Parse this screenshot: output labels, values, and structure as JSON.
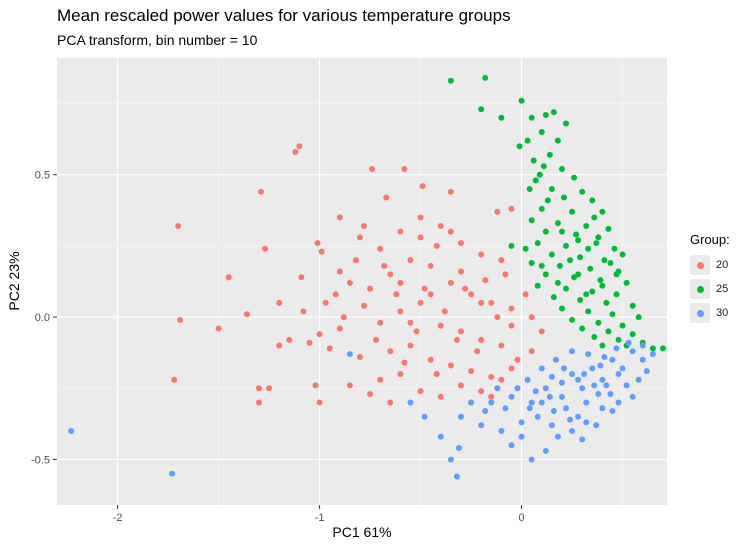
{
  "chart_data": {
    "type": "scatter",
    "title": "Mean rescaled power values for various temperature groups",
    "subtitle": "PCA transform, bin number = 10",
    "xlabel": "PC1 61%",
    "ylabel": "PC2 23%",
    "xlim": [
      -2.3,
      0.72
    ],
    "ylim": [
      -0.66,
      0.91
    ],
    "x_ticks": [
      -2,
      -1,
      0
    ],
    "x_tick_labels": [
      "-2",
      "-1",
      "0"
    ],
    "y_ticks": [
      -0.5,
      0.0,
      0.5
    ],
    "y_tick_labels": [
      "-0.5",
      "0.0",
      "0.5"
    ],
    "grid": true,
    "legend": {
      "title": "Group:",
      "position": "right"
    },
    "series": [
      {
        "name": "20",
        "color": "#F8766D",
        "points": [
          [
            -1.1,
            0.6
          ],
          [
            -1.12,
            0.58
          ],
          [
            -1.29,
            0.44
          ],
          [
            -1.7,
            0.32
          ],
          [
            -1.27,
            0.24
          ],
          [
            -1.45,
            0.14
          ],
          [
            -1.69,
            -0.01
          ],
          [
            -1.36,
            0.01
          ],
          [
            -1.2,
            0.05
          ],
          [
            -1.09,
            0.14
          ],
          [
            -1.01,
            0.26
          ],
          [
            -0.99,
            0.23
          ],
          [
            -0.9,
            0.16
          ],
          [
            -0.74,
            0.52
          ],
          [
            -0.58,
            0.52
          ],
          [
            -0.49,
            0.46
          ],
          [
            -0.35,
            0.44
          ],
          [
            -0.12,
            0.37
          ],
          [
            -0.05,
            0.38
          ],
          [
            -0.5,
            0.35
          ],
          [
            -0.4,
            0.32
          ],
          [
            -0.6,
            0.3
          ],
          [
            -0.8,
            0.28
          ],
          [
            -0.7,
            0.24
          ],
          [
            -0.3,
            0.26
          ],
          [
            -0.2,
            0.22
          ],
          [
            -0.1,
            0.2
          ],
          [
            -0.55,
            0.2
          ],
          [
            -0.45,
            0.18
          ],
          [
            -0.65,
            0.15
          ],
          [
            -0.85,
            0.12
          ],
          [
            -0.75,
            0.1
          ],
          [
            -0.35,
            0.12
          ],
          [
            -0.25,
            0.08
          ],
          [
            -0.15,
            0.05
          ],
          [
            -0.05,
            0.03
          ],
          [
            -0.5,
            0.05
          ],
          [
            -0.6,
            0.02
          ],
          [
            -0.7,
            -0.02
          ],
          [
            -0.9,
            -0.04
          ],
          [
            -1.0,
            -0.06
          ],
          [
            -0.4,
            -0.03
          ],
          [
            -0.3,
            -0.05
          ],
          [
            -0.2,
            -0.08
          ],
          [
            -0.1,
            -0.1
          ],
          [
            -0.55,
            -0.1
          ],
          [
            -0.65,
            -0.12
          ],
          [
            -0.8,
            -0.14
          ],
          [
            -0.95,
            -0.11
          ],
          [
            -1.05,
            -0.09
          ],
          [
            -1.15,
            -0.08
          ],
          [
            -0.45,
            -0.15
          ],
          [
            -0.35,
            -0.17
          ],
          [
            -0.25,
            -0.19
          ],
          [
            -0.15,
            -0.21
          ],
          [
            -0.6,
            -0.2
          ],
          [
            -0.7,
            -0.22
          ],
          [
            -0.85,
            -0.24
          ],
          [
            -0.5,
            -0.26
          ],
          [
            -0.4,
            -0.28
          ],
          [
            -0.3,
            -0.24
          ],
          [
            -0.2,
            -0.26
          ],
          [
            -1.02,
            -0.24
          ],
          [
            -1.0,
            -0.3
          ],
          [
            -0.75,
            -0.27
          ],
          [
            -0.65,
            -0.3
          ],
          [
            -1.3,
            -0.25
          ],
          [
            -1.25,
            -0.25
          ],
          [
            -1.72,
            -0.22
          ],
          [
            -1.3,
            -0.3
          ],
          [
            -1.5,
            -0.04
          ],
          [
            -1.2,
            -0.1
          ],
          [
            -0.05,
            -0.03
          ],
          [
            0.05,
            0.0
          ],
          [
            0.1,
            -0.05
          ],
          [
            0.02,
            0.08
          ],
          [
            -0.08,
            0.15
          ],
          [
            -0.3,
            0.16
          ],
          [
            -0.42,
            0.25
          ],
          [
            -0.62,
            0.08
          ],
          [
            -0.78,
            0.04
          ],
          [
            -0.88,
            0.0
          ],
          [
            -0.97,
            0.05
          ],
          [
            -0.52,
            -0.05
          ],
          [
            -0.38,
            0.02
          ],
          [
            -0.28,
            0.1
          ],
          [
            -0.18,
            0.13
          ],
          [
            -0.12,
            0.0
          ],
          [
            -0.02,
            -0.15
          ],
          [
            0.05,
            -0.12
          ],
          [
            -0.05,
            -0.18
          ],
          [
            -0.22,
            -0.12
          ],
          [
            -0.32,
            -0.08
          ],
          [
            -0.48,
            0.1
          ],
          [
            -0.68,
            0.18
          ],
          [
            -0.82,
            0.2
          ],
          [
            -0.92,
            0.08
          ],
          [
            -1.08,
            0.02
          ],
          [
            -0.58,
            -0.16
          ],
          [
            -0.72,
            -0.08
          ],
          [
            -0.42,
            -0.2
          ],
          [
            -0.25,
            -0.3
          ],
          [
            -0.15,
            -0.28
          ],
          [
            -0.1,
            -0.22
          ],
          [
            -0.6,
            0.12
          ],
          [
            -0.5,
            0.28
          ],
          [
            -0.35,
            0.3
          ],
          [
            -0.78,
            0.32
          ],
          [
            -0.9,
            0.35
          ],
          [
            -0.67,
            0.42
          ],
          [
            -0.2,
            0.05
          ],
          [
            -0.45,
            0.08
          ],
          [
            -0.55,
            -0.02
          ]
        ]
      },
      {
        "name": "25",
        "color": "#00BA38",
        "points": [
          [
            -0.35,
            0.83
          ],
          [
            -0.18,
            0.84
          ],
          [
            -0.2,
            0.73
          ],
          [
            -0.1,
            0.7
          ],
          [
            0.0,
            0.76
          ],
          [
            0.12,
            0.71
          ],
          [
            0.05,
            0.7
          ],
          [
            0.16,
            0.72
          ],
          [
            0.22,
            0.68
          ],
          [
            0.1,
            0.65
          ],
          [
            0.03,
            0.62
          ],
          [
            -0.01,
            0.6
          ],
          [
            0.18,
            0.62
          ],
          [
            0.06,
            0.55
          ],
          [
            0.14,
            0.57
          ],
          [
            0.2,
            0.52
          ],
          [
            0.09,
            0.5
          ],
          [
            0.26,
            0.49
          ],
          [
            0.04,
            0.45
          ],
          [
            0.15,
            0.45
          ],
          [
            0.3,
            0.44
          ],
          [
            0.21,
            0.42
          ],
          [
            0.35,
            0.41
          ],
          [
            0.1,
            0.38
          ],
          [
            0.25,
            0.37
          ],
          [
            0.4,
            0.37
          ],
          [
            0.05,
            0.34
          ],
          [
            0.18,
            0.33
          ],
          [
            0.32,
            0.32
          ],
          [
            0.43,
            0.31
          ],
          [
            0.12,
            0.3
          ],
          [
            0.27,
            0.29
          ],
          [
            0.38,
            0.28
          ],
          [
            0.08,
            0.26
          ],
          [
            0.22,
            0.25
          ],
          [
            0.33,
            0.24
          ],
          [
            0.46,
            0.24
          ],
          [
            0.15,
            0.22
          ],
          [
            0.29,
            0.21
          ],
          [
            0.41,
            0.2
          ],
          [
            0.05,
            0.19
          ],
          [
            0.19,
            0.18
          ],
          [
            0.34,
            0.17
          ],
          [
            0.48,
            0.16
          ],
          [
            0.12,
            0.15
          ],
          [
            0.26,
            0.14
          ],
          [
            0.39,
            0.13
          ],
          [
            0.52,
            0.12
          ],
          [
            0.08,
            0.11
          ],
          [
            0.22,
            0.1
          ],
          [
            0.35,
            0.09
          ],
          [
            0.47,
            0.08
          ],
          [
            0.16,
            0.07
          ],
          [
            0.29,
            0.06
          ],
          [
            0.42,
            0.05
          ],
          [
            0.55,
            0.04
          ],
          [
            0.2,
            0.03
          ],
          [
            0.33,
            0.02
          ],
          [
            0.45,
            0.01
          ],
          [
            0.58,
            0.0
          ],
          [
            0.25,
            -0.01
          ],
          [
            0.38,
            -0.02
          ],
          [
            0.5,
            -0.03
          ],
          [
            0.3,
            -0.04
          ],
          [
            0.43,
            -0.05
          ],
          [
            0.55,
            -0.06
          ],
          [
            0.36,
            -0.07
          ],
          [
            0.48,
            -0.08
          ],
          [
            0.6,
            -0.09
          ],
          [
            0.4,
            -0.1
          ],
          [
            0.52,
            -0.1
          ],
          [
            0.65,
            -0.11
          ],
          [
            0.7,
            -0.11
          ],
          [
            0.28,
            0.27
          ],
          [
            0.18,
            0.12
          ],
          [
            0.44,
            0.19
          ],
          [
            0.5,
            0.22
          ],
          [
            0.24,
            0.2
          ],
          [
            0.36,
            0.35
          ],
          [
            0.13,
            0.41
          ],
          [
            0.02,
            0.24
          ],
          [
            -0.05,
            0.25
          ],
          [
            0.28,
            0.15
          ],
          [
            0.4,
            0.11
          ],
          [
            0.32,
            0.08
          ],
          [
            0.1,
            0.18
          ],
          [
            0.47,
            0.15
          ],
          [
            0.2,
            0.3
          ],
          [
            0.37,
            0.26
          ],
          [
            0.11,
            0.53
          ],
          [
            0.07,
            0.48
          ]
        ]
      },
      {
        "name": "30",
        "color": "#619CFF",
        "points": [
          [
            -2.23,
            -0.4
          ],
          [
            -1.73,
            -0.55
          ],
          [
            -0.85,
            -0.13
          ],
          [
            -0.4,
            -0.42
          ],
          [
            -0.35,
            -0.5
          ],
          [
            -0.31,
            -0.46
          ],
          [
            -0.32,
            -0.56
          ],
          [
            -0.3,
            -0.35
          ],
          [
            -0.2,
            -0.38
          ],
          [
            -0.1,
            -0.4
          ],
          [
            -0.05,
            -0.45
          ],
          [
            0.0,
            -0.37
          ],
          [
            -0.15,
            -0.3
          ],
          [
            -0.05,
            -0.28
          ],
          [
            0.05,
            -0.3
          ],
          [
            0.12,
            -0.25
          ],
          [
            0.2,
            -0.28
          ],
          [
            0.25,
            -0.2
          ],
          [
            0.3,
            -0.25
          ],
          [
            0.35,
            -0.18
          ],
          [
            0.4,
            -0.22
          ],
          [
            0.45,
            -0.15
          ],
          [
            0.5,
            -0.18
          ],
          [
            0.55,
            -0.12
          ],
          [
            0.6,
            -0.15
          ],
          [
            0.08,
            -0.35
          ],
          [
            0.15,
            -0.38
          ],
          [
            0.22,
            -0.32
          ],
          [
            0.28,
            -0.35
          ],
          [
            0.32,
            -0.3
          ],
          [
            0.38,
            -0.27
          ],
          [
            0.42,
            -0.24
          ],
          [
            0.48,
            -0.2
          ],
          [
            0.52,
            -0.24
          ],
          [
            0.58,
            -0.22
          ],
          [
            0.62,
            -0.19
          ],
          [
            0.03,
            -0.22
          ],
          [
            0.1,
            -0.18
          ],
          [
            0.17,
            -0.15
          ],
          [
            0.25,
            -0.12
          ],
          [
            0.33,
            -0.13
          ],
          [
            0.41,
            -0.14
          ],
          [
            -0.08,
            -0.32
          ],
          [
            0.0,
            -0.42
          ],
          [
            0.18,
            -0.42
          ],
          [
            0.25,
            -0.4
          ],
          [
            0.12,
            -0.47
          ],
          [
            0.05,
            -0.5
          ],
          [
            0.3,
            -0.43
          ],
          [
            0.37,
            -0.38
          ],
          [
            0.45,
            -0.33
          ],
          [
            0.2,
            -0.23
          ],
          [
            0.28,
            -0.22
          ],
          [
            0.36,
            -0.24
          ],
          [
            0.44,
            -0.27
          ],
          [
            0.14,
            -0.28
          ],
          [
            0.07,
            -0.26
          ],
          [
            -0.02,
            -0.25
          ],
          [
            0.6,
            -0.1
          ],
          [
            0.65,
            -0.13
          ],
          [
            0.55,
            -0.28
          ],
          [
            0.48,
            -0.3
          ],
          [
            0.4,
            -0.32
          ],
          [
            0.32,
            -0.37
          ],
          [
            0.24,
            -0.36
          ],
          [
            0.16,
            -0.33
          ],
          [
            0.1,
            -0.3
          ],
          [
            0.04,
            -0.32
          ],
          [
            -0.12,
            -0.25
          ],
          [
            -0.25,
            -0.3
          ],
          [
            -0.18,
            -0.33
          ],
          [
            0.21,
            -0.18
          ],
          [
            0.31,
            -0.2
          ],
          [
            0.39,
            -0.17
          ],
          [
            0.47,
            -0.11
          ],
          [
            0.53,
            -0.09
          ],
          [
            0.15,
            -0.21
          ],
          [
            -0.55,
            -0.3
          ],
          [
            -0.48,
            -0.35
          ]
        ]
      }
    ]
  }
}
